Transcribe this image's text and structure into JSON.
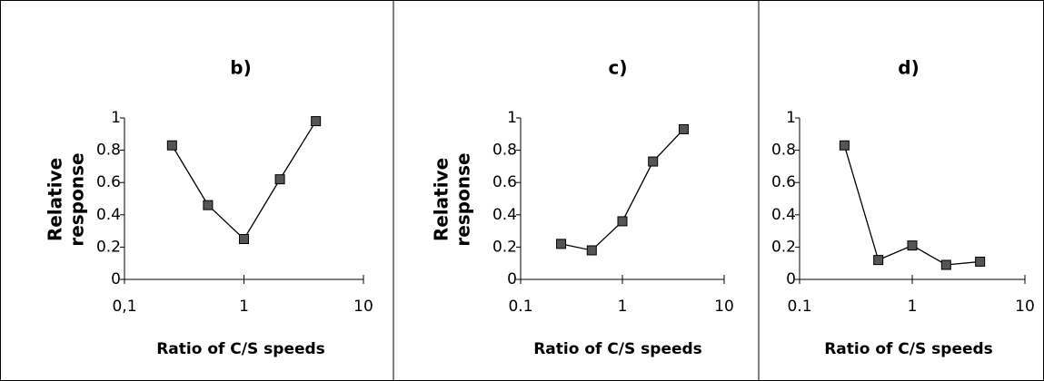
{
  "chart_data": [
    {
      "type": "line",
      "title": "b)",
      "xlabel": "Ratio of C/S speeds",
      "ylabel": [
        "Relative",
        "response"
      ],
      "x": [
        0.25,
        0.5,
        1,
        2,
        4
      ],
      "series": [
        {
          "color": "#555555",
          "values": [
            0.83,
            0.46,
            0.25,
            0.62,
            0.98
          ]
        }
      ],
      "xscale": "log",
      "xlim": [
        0.1,
        10
      ],
      "xticks": [
        {
          "value": 0.1,
          "label": "0,1"
        },
        1,
        10
      ],
      "ylim": [
        0,
        1
      ],
      "yticks": [
        0,
        0.2,
        0.4,
        0.6,
        0.8,
        1
      ]
    },
    {
      "type": "line",
      "title": "c)",
      "xlabel": "Ratio of C/S speeds",
      "ylabel": [
        "Relative",
        "response"
      ],
      "x": [
        0.25,
        0.5,
        1,
        2,
        4
      ],
      "series": [
        {
          "color": "#555555",
          "values": [
            0.22,
            0.18,
            0.36,
            0.73,
            0.93
          ]
        }
      ],
      "xscale": "log",
      "xlim": [
        0.1,
        10
      ],
      "xticks": [
        {
          "value": 0.1,
          "label": "0.1"
        },
        1,
        10
      ],
      "ylim": [
        0,
        1
      ],
      "yticks": [
        0,
        0.2,
        0.4,
        0.6,
        0.8,
        1
      ]
    },
    {
      "type": "line",
      "title": "d)",
      "xlabel": "Ratio of C/S speeds",
      "x": [
        0.25,
        0.5,
        1,
        2,
        4
      ],
      "series": [
        {
          "color": "#555555",
          "values": [
            0.83,
            0.12,
            0.21,
            0.09,
            0.11
          ]
        }
      ],
      "xscale": "log",
      "xlim": [
        0.1,
        10
      ],
      "xticks": [
        {
          "value": 0.1,
          "label": "0.1"
        },
        1,
        10
      ],
      "ylim": [
        0,
        1
      ],
      "yticks": [
        0,
        0.2,
        0.4,
        0.6,
        0.8,
        1
      ]
    }
  ]
}
